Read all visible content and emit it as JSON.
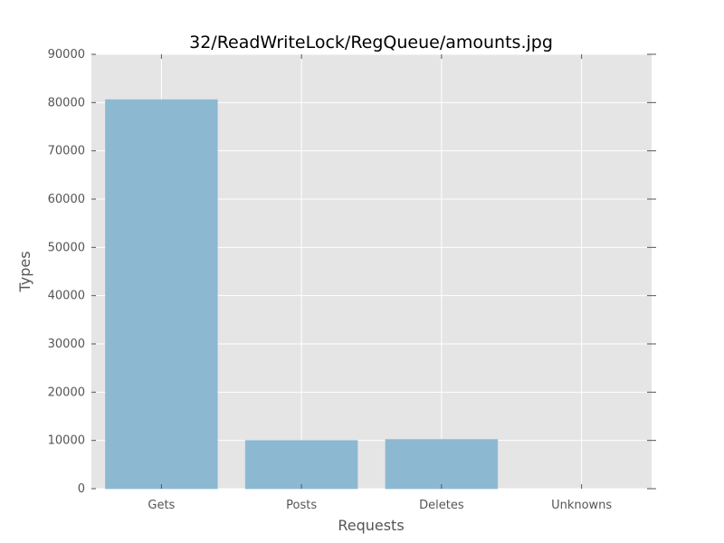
{
  "chart_data": {
    "type": "bar",
    "title": "32/ReadWriteLock/RegQueue/amounts.jpg",
    "xlabel": "Requests",
    "ylabel": "Types",
    "categories": [
      "Gets",
      "Posts",
      "Deletes",
      "Unknowns"
    ],
    "values": [
      80600,
      10000,
      10200,
      0
    ],
    "ylim": [
      0,
      90000
    ],
    "yticks": [
      0,
      10000,
      20000,
      30000,
      40000,
      50000,
      60000,
      70000,
      80000,
      90000
    ],
    "grid": true,
    "legend": "none"
  },
  "colors": {
    "bar": "#8cb8d2",
    "plot_background": "#e5e5e5",
    "grid": "#ffffff"
  }
}
